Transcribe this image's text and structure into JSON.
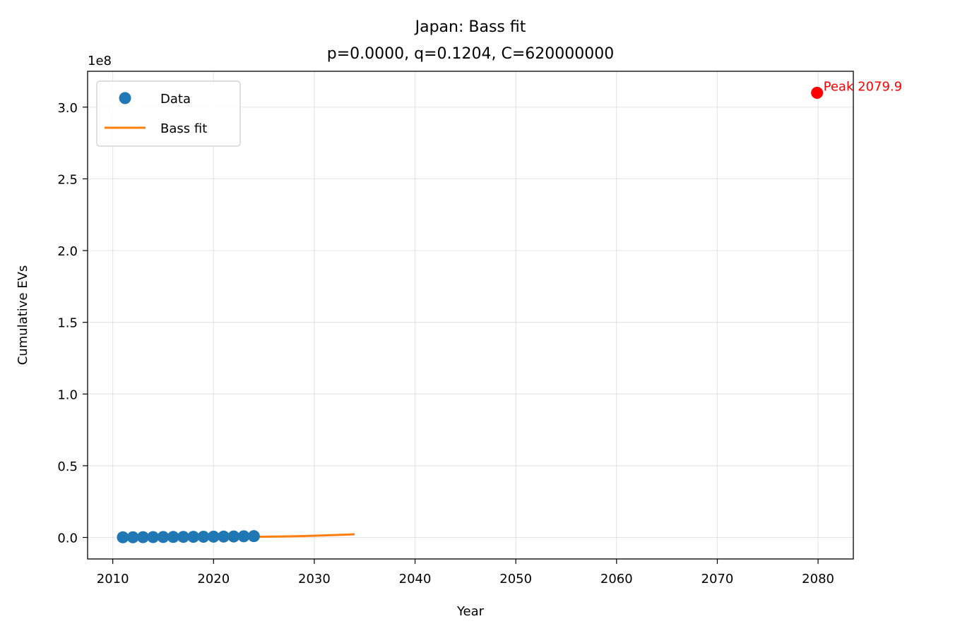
{
  "chart_data": {
    "type": "scatter",
    "title_line1": "Japan: Bass fit",
    "title_line2": "p=0.0000, q=0.1204, C=620000000",
    "xlabel": "Year",
    "ylabel": "Cumulative EVs",
    "y_offset_label": "1e8",
    "xlim": [
      2007.5,
      2083.5
    ],
    "ylim": [
      -15000000,
      325000000
    ],
    "xticks": [
      2010,
      2020,
      2030,
      2040,
      2050,
      2060,
      2070,
      2080
    ],
    "xtick_labels": [
      "2010",
      "2020",
      "2030",
      "2040",
      "2050",
      "2060",
      "2070",
      "2080"
    ],
    "yticks": [
      0,
      50000000,
      100000000,
      150000000,
      200000000,
      250000000,
      300000000
    ],
    "ytick_labels": [
      "0.0",
      "0.5",
      "1.0",
      "1.5",
      "2.0",
      "2.5",
      "3.0"
    ],
    "grid": true,
    "legend_position": "top-left",
    "series": [
      {
        "name": "Data",
        "kind": "scatter",
        "color": "#1f77b4",
        "x": [
          2011,
          2012,
          2013,
          2014,
          2015,
          2016,
          2017,
          2018,
          2019,
          2020,
          2021,
          2022,
          2023,
          2024
        ],
        "y": [
          100000,
          150000,
          200000,
          250000,
          300000,
          350000,
          400000,
          450000,
          500000,
          550000,
          600000,
          700000,
          800000,
          900000
        ]
      },
      {
        "name": "Bass fit",
        "kind": "line",
        "color": "#ff7f0e",
        "x": [
          2011,
          2013,
          2015,
          2017,
          2019,
          2021,
          2023,
          2025,
          2027,
          2029,
          2031,
          2033,
          2034
        ],
        "y": [
          0,
          10000,
          30000,
          70000,
          120000,
          200000,
          320000,
          500000,
          700000,
          1000000,
          1400000,
          1900000,
          2200000
        ]
      }
    ],
    "annotation": {
      "label": "Peak 2079.9",
      "x": 2079.9,
      "y": 310000000,
      "color": "#ff0000"
    }
  }
}
